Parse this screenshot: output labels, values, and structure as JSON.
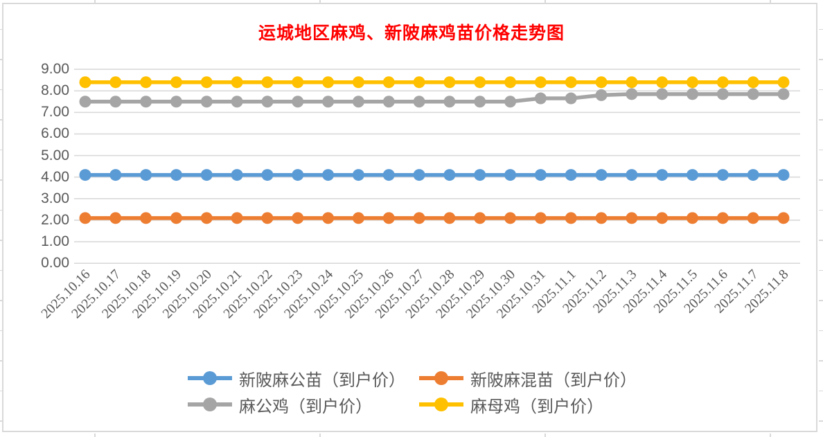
{
  "frame": {
    "border_color": "#D9D9D9",
    "background": "#FFFFFF"
  },
  "chart_data": {
    "type": "line",
    "title": "运城地区麻鸡、新陂麻鸡苗价格走势图",
    "title_color": "#FF0000",
    "categories": [
      "2025.10.16",
      "2025.10.17",
      "2025.10.18",
      "2025.10.19",
      "2025.10.20",
      "2025.10.21",
      "2025.10.22",
      "2025.10.23",
      "2025.10.24",
      "2025.10.25",
      "2025.10.26",
      "2025.10.27",
      "2025.10.28",
      "2025.10.29",
      "2025.10.30",
      "2025.10.31",
      "2025.11.1",
      "2025.11.2",
      "2025.11.3",
      "2025.11.4",
      "2025.11.5",
      "2025.11.6",
      "2025.11.7",
      "2025.11.8"
    ],
    "series": [
      {
        "name": "新陂麻公苗（到户价）",
        "color": "#5B9BD5",
        "values": [
          4.1,
          4.1,
          4.1,
          4.1,
          4.1,
          4.1,
          4.1,
          4.1,
          4.1,
          4.1,
          4.1,
          4.1,
          4.1,
          4.1,
          4.1,
          4.1,
          4.1,
          4.1,
          4.1,
          4.1,
          4.1,
          4.1,
          4.1,
          4.1
        ]
      },
      {
        "name": "新陂麻混苗（到户价）",
        "color": "#ED7D31",
        "values": [
          2.1,
          2.1,
          2.1,
          2.1,
          2.1,
          2.1,
          2.1,
          2.1,
          2.1,
          2.1,
          2.1,
          2.1,
          2.1,
          2.1,
          2.1,
          2.1,
          2.1,
          2.1,
          2.1,
          2.1,
          2.1,
          2.1,
          2.1,
          2.1
        ]
      },
      {
        "name": "麻公鸡（到户价）",
        "color": "#A5A5A5",
        "values": [
          7.5,
          7.5,
          7.5,
          7.5,
          7.5,
          7.5,
          7.5,
          7.5,
          7.5,
          7.5,
          7.5,
          7.5,
          7.5,
          7.5,
          7.5,
          7.65,
          7.65,
          7.8,
          7.85,
          7.85,
          7.85,
          7.85,
          7.85,
          7.85
        ]
      },
      {
        "name": "麻母鸡（到户价）",
        "color": "#FFC000",
        "values": [
          8.4,
          8.4,
          8.4,
          8.4,
          8.4,
          8.4,
          8.4,
          8.4,
          8.4,
          8.4,
          8.4,
          8.4,
          8.4,
          8.4,
          8.4,
          8.4,
          8.4,
          8.4,
          8.4,
          8.4,
          8.4,
          8.4,
          8.4,
          8.4
        ]
      }
    ],
    "ylim": [
      0,
      9
    ],
    "yticks": [
      "0.00",
      "1.00",
      "2.00",
      "3.00",
      "4.00",
      "5.00",
      "6.00",
      "7.00",
      "8.00",
      "9.00"
    ],
    "grid": true,
    "gridline_color": "#D9D9D9",
    "tick_label_color": "#595959",
    "legend_position": "bottom",
    "legend_rows": [
      [
        0,
        1
      ],
      [
        2,
        3
      ]
    ]
  }
}
